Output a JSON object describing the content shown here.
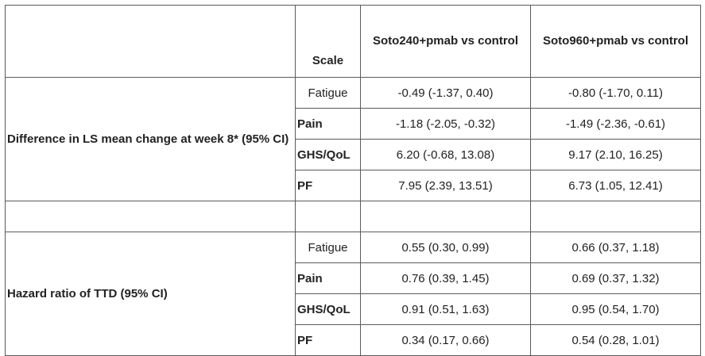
{
  "header": {
    "scale": "Scale",
    "col1": "Soto240+pmab vs control",
    "col2": "Soto960+pmab vs control"
  },
  "groups": [
    {
      "metric": "Difference in LS mean change at week 8* (95% CI)",
      "rows": [
        {
          "scale": "Fatigue",
          "v1": "-0.49 (-1.37, 0.40)",
          "v2": "-0.80 (-1.70, 0.11)"
        },
        {
          "scale": "Pain",
          "v1": "-1.18 (-2.05, -0.32)",
          "v2": "-1.49 (-2.36, -0.61)"
        },
        {
          "scale": "GHS/QoL",
          "v1": "6.20 (-0.68, 13.08)",
          "v2": "9.17 (2.10, 16.25)"
        },
        {
          "scale": "PF",
          "v1": "7.95 (2.39, 13.51)",
          "v2": "6.73 (1.05, 12.41)"
        }
      ]
    },
    {
      "metric": "Hazard ratio of TTD (95% CI)",
      "rows": [
        {
          "scale": "Fatigue",
          "v1": "0.55 (0.30, 0.99)",
          "v2": "0.66 (0.37, 1.18)"
        },
        {
          "scale": "Pain",
          "v1": "0.76 (0.39, 1.45)",
          "v2": "0.69 (0.37, 1.32)"
        },
        {
          "scale": "GHS/QoL",
          "v1": "0.91 (0.51, 1.63)",
          "v2": "0.95 (0.54, 1.70)"
        },
        {
          "scale": "PF",
          "v1": "0.34 (0.17, 0.66)",
          "v2": "0.54 (0.28, 1.01)"
        }
      ]
    }
  ]
}
